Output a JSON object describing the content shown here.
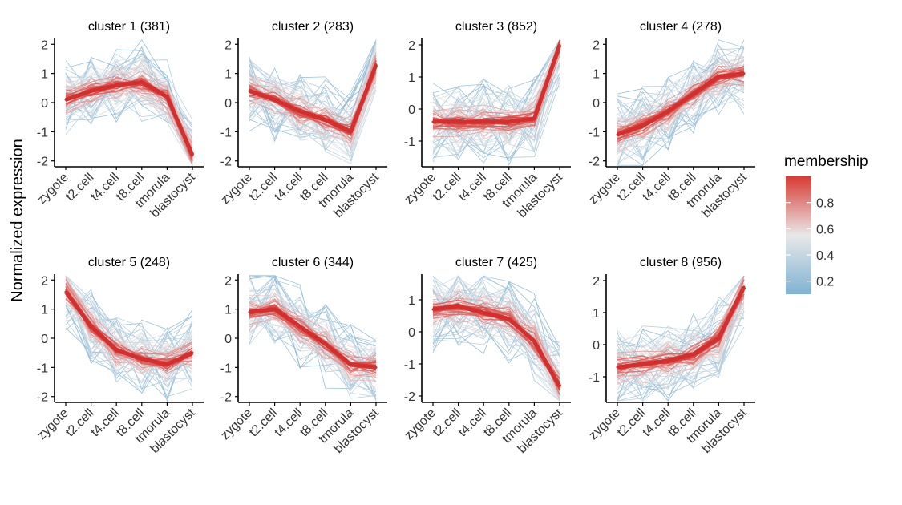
{
  "figure": {
    "ylabel": "Normalized expression",
    "legend": {
      "title": "membership",
      "position": "right",
      "colors": {
        "low": "#7fb2d3",
        "mid": "#e8e8e8",
        "high": "#d83a34"
      },
      "range": [
        0.1,
        1.0
      ],
      "tick_labels": [
        "0.2",
        "0.4",
        "0.6",
        "0.8"
      ]
    },
    "styles": {
      "grid": false,
      "line_color_low": "#6aa4c8",
      "core_color": "#d32f2f"
    }
  },
  "chart_data": [
    {
      "type": "line",
      "title": "cluster 1 (381)",
      "xlabel": "",
      "ylabel": "Normalized expression",
      "categories": [
        "zygote",
        "t2.cell",
        "t4.cell",
        "t8.cell",
        "tmorula",
        "blastocyst"
      ],
      "ylim": [
        -2.2,
        2.2
      ],
      "yticks": [
        -2,
        -1,
        0,
        1,
        2
      ],
      "series": [
        {
          "values": [
            0.1,
            0.4,
            0.6,
            0.7,
            0.2,
            -1.8
          ]
        }
      ]
    },
    {
      "type": "line",
      "title": "cluster 2 (283)",
      "xlabel": "",
      "ylabel": "",
      "categories": [
        "zygote",
        "t2.cell",
        "t4.cell",
        "t8.cell",
        "tmorula",
        "blastocyst"
      ],
      "ylim": [
        -2.2,
        2.2
      ],
      "yticks": [
        -2,
        -1,
        0,
        1,
        2
      ],
      "series": [
        {
          "values": [
            0.4,
            0.1,
            -0.3,
            -0.6,
            -1.0,
            1.3
          ]
        }
      ]
    },
    {
      "type": "line",
      "title": "cluster 3 (852)",
      "xlabel": "",
      "ylabel": "",
      "categories": [
        "zygote",
        "t2.cell",
        "t4.cell",
        "t8.cell",
        "tmorula",
        "blastocyst"
      ],
      "ylim": [
        -1.8,
        2.2
      ],
      "yticks": [
        -1,
        0,
        1,
        2
      ],
      "series": [
        {
          "values": [
            -0.4,
            -0.4,
            -0.4,
            -0.4,
            -0.3,
            2.0
          ]
        }
      ]
    },
    {
      "type": "line",
      "title": "cluster 4 (278)",
      "xlabel": "",
      "ylabel": "",
      "categories": [
        "zygote",
        "t2.cell",
        "t4.cell",
        "t8.cell",
        "tmorula",
        "blastocyst"
      ],
      "ylim": [
        -2.2,
        2.2
      ],
      "yticks": [
        -2,
        -1,
        0,
        1,
        2
      ],
      "series": [
        {
          "values": [
            -1.1,
            -0.8,
            -0.3,
            0.3,
            0.9,
            1.0
          ]
        }
      ]
    },
    {
      "type": "line",
      "title": "cluster 5 (248)",
      "xlabel": "",
      "ylabel": "",
      "categories": [
        "zygote",
        "t2.cell",
        "t4.cell",
        "t8.cell",
        "tmorula",
        "blastocyst"
      ],
      "ylim": [
        -2.2,
        2.2
      ],
      "yticks": [
        -2,
        -1,
        0,
        1,
        2
      ],
      "series": [
        {
          "values": [
            1.6,
            0.4,
            -0.4,
            -0.7,
            -0.9,
            -0.5
          ]
        }
      ]
    },
    {
      "type": "line",
      "title": "cluster 6 (344)",
      "xlabel": "",
      "ylabel": "",
      "categories": [
        "zygote",
        "t2.cell",
        "t4.cell",
        "t8.cell",
        "tmorula",
        "blastocyst"
      ],
      "ylim": [
        -2.2,
        2.2
      ],
      "yticks": [
        -2,
        -1,
        0,
        1,
        2
      ],
      "series": [
        {
          "values": [
            0.9,
            1.0,
            0.4,
            -0.2,
            -0.9,
            -1.0
          ]
        }
      ]
    },
    {
      "type": "line",
      "title": "cluster 7 (425)",
      "xlabel": "",
      "ylabel": "",
      "categories": [
        "zygote",
        "t2.cell",
        "t4.cell",
        "t8.cell",
        "tmorula",
        "blastocyst"
      ],
      "ylim": [
        -2.2,
        1.8
      ],
      "yticks": [
        -2,
        -1,
        0,
        1
      ],
      "series": [
        {
          "values": [
            0.7,
            0.8,
            0.6,
            0.4,
            -0.3,
            -1.7
          ]
        }
      ]
    },
    {
      "type": "line",
      "title": "cluster 8 (956)",
      "xlabel": "",
      "ylabel": "",
      "categories": [
        "zygote",
        "t2.cell",
        "t4.cell",
        "t8.cell",
        "tmorula",
        "blastocyst"
      ],
      "ylim": [
        -1.8,
        2.2
      ],
      "yticks": [
        -1,
        0,
        1,
        2
      ],
      "series": [
        {
          "values": [
            -0.7,
            -0.6,
            -0.5,
            -0.3,
            0.2,
            1.8
          ]
        }
      ]
    }
  ]
}
